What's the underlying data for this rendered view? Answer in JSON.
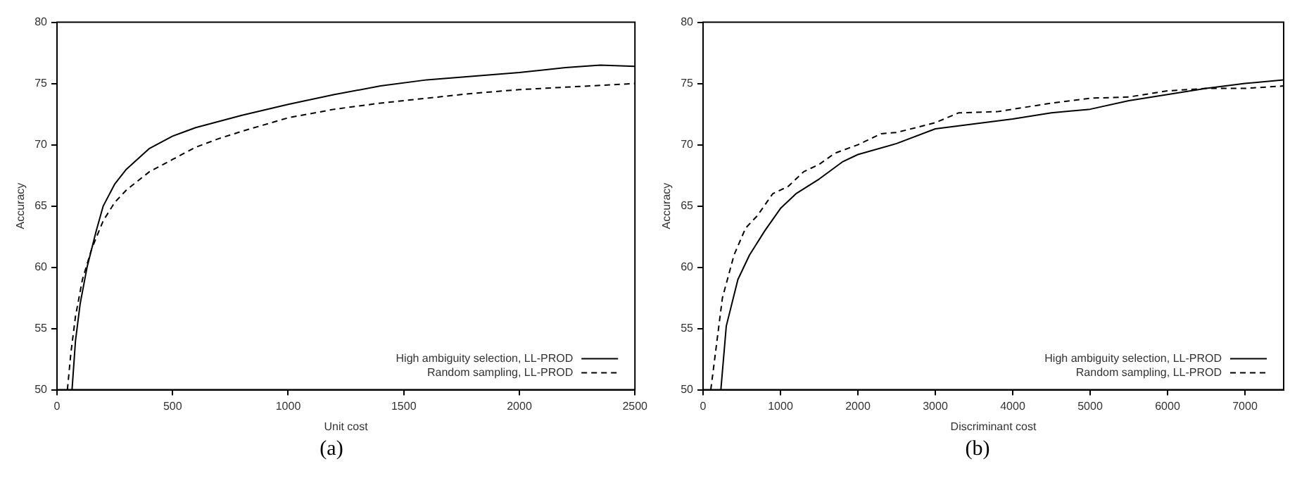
{
  "chart_data": [
    {
      "type": "line",
      "xlabel": "Unit cost",
      "ylabel": "Accuracy",
      "annotations": [
        "(a)"
      ],
      "xlim": [
        0,
        2500
      ],
      "xticks": [
        0,
        500,
        1000,
        1500,
        2000,
        2500
      ],
      "ylim": [
        50,
        80
      ],
      "yticks": [
        50,
        55,
        60,
        65,
        70,
        75,
        80
      ],
      "legend": "bottom right",
      "marker": "none",
      "series": [
        {
          "name": "High ambiguity selection, LL-PROD",
          "color": "#000000",
          "line_style": "solid",
          "x": [
            65,
            80,
            100,
            130,
            170,
            200,
            250,
            300,
            400,
            500,
            600,
            700,
            800,
            1000,
            1200,
            1400,
            1600,
            1800,
            2000,
            2200,
            2350,
            2500
          ],
          "values": [
            50,
            54,
            57,
            60,
            63,
            65,
            66.8,
            68,
            69.7,
            70.7,
            71.4,
            71.9,
            72.4,
            73.3,
            74.1,
            74.8,
            75.3,
            75.6,
            75.9,
            76.3,
            76.5,
            76.4
          ]
        },
        {
          "name": "Random sampling, LL-PROD",
          "color": "#000000",
          "line_style": "dashed",
          "x": [
            45,
            60,
            80,
            110,
            150,
            200,
            250,
            300,
            400,
            500,
            600,
            700,
            800,
            1000,
            1200,
            1400,
            1600,
            1800,
            2000,
            2200,
            2400,
            2500
          ],
          "values": [
            50,
            53,
            56,
            59,
            61.5,
            63.8,
            65.3,
            66.3,
            67.8,
            68.8,
            69.8,
            70.5,
            71.1,
            72.2,
            72.9,
            73.4,
            73.8,
            74.2,
            74.5,
            74.7,
            74.9,
            75.0
          ]
        }
      ]
    },
    {
      "type": "line",
      "xlabel": "Discriminant cost",
      "ylabel": "Accuracy",
      "annotations": [
        "(b)"
      ],
      "xlim": [
        0,
        7500
      ],
      "xticks": [
        0,
        1000,
        2000,
        3000,
        4000,
        5000,
        6000,
        7000
      ],
      "ylim": [
        50,
        80
      ],
      "yticks": [
        50,
        55,
        60,
        65,
        70,
        75,
        80
      ],
      "legend": "bottom right",
      "marker": "none",
      "series": [
        {
          "name": "High ambiguity selection, LL-PROD",
          "color": "#000000",
          "line_style": "solid",
          "x": [
            230,
            300,
            450,
            600,
            800,
            1000,
            1200,
            1500,
            1800,
            2000,
            2500,
            3000,
            3500,
            4000,
            4500,
            5000,
            5500,
            6000,
            6500,
            7000,
            7500
          ],
          "values": [
            50,
            55.2,
            59,
            61,
            63,
            64.8,
            66,
            67.2,
            68.6,
            69.2,
            70.1,
            71.3,
            71.7,
            72.1,
            72.6,
            72.9,
            73.6,
            74.1,
            74.6,
            75,
            75.3
          ]
        },
        {
          "name": "Random sampling, LL-PROD",
          "color": "#000000",
          "line_style": "dashed",
          "x": [
            100,
            250,
            400,
            550,
            700,
            900,
            1100,
            1300,
            1500,
            1700,
            2000,
            2300,
            2500,
            3000,
            3300,
            3800,
            4000,
            4500,
            5000,
            5500,
            6000,
            6500,
            7000,
            7500
          ],
          "values": [
            50,
            57.5,
            61,
            63.2,
            64.2,
            66,
            66.6,
            67.8,
            68.4,
            69.3,
            70,
            70.9,
            71,
            71.8,
            72.6,
            72.7,
            72.9,
            73.4,
            73.8,
            73.9,
            74.4,
            74.6,
            74.6,
            74.8
          ]
        }
      ]
    }
  ]
}
